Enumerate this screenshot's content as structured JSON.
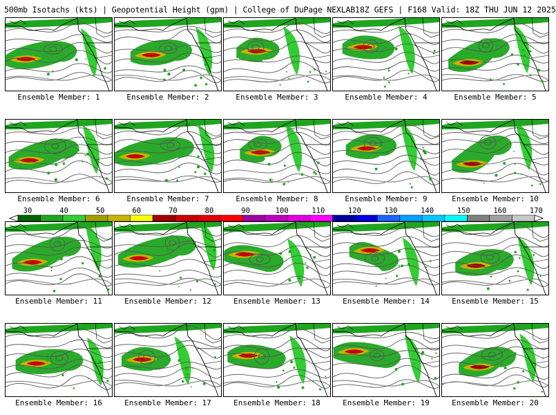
{
  "header": {
    "left": "500mb Isotachs (kts) | Geopotential Height (gpm) | College of DuPage NEXLAB",
    "right": "18Z GEFS | F168 Valid: 18Z THU JUN 12 2025"
  },
  "colorbar": {
    "labels": [
      "30",
      "40",
      "50",
      "60",
      "70",
      "80",
      "90",
      "100",
      "110",
      "120",
      "130",
      "140",
      "150",
      "160",
      "170"
    ],
    "colors": [
      "#006400",
      "#1fa51f",
      "#32cd32",
      "#a0a000",
      "#c8b400",
      "#ffff00",
      "#a00000",
      "#c80000",
      "#e00000",
      "#ff0000",
      "#a000a0",
      "#c000c0",
      "#e000e0",
      "#ff00ff",
      "#0000a0",
      "#0000e0",
      "#1e64ff",
      "#00a0ff",
      "#00c8ff",
      "#00ffff",
      "#808080",
      "#a0a0a0",
      "#c8c8c8"
    ]
  },
  "panels": [
    {
      "label": "Ensemble Member: 1"
    },
    {
      "label": "Ensemble Member: 2"
    },
    {
      "label": "Ensemble Member: 3"
    },
    {
      "label": "Ensemble Member: 4"
    },
    {
      "label": "Ensemble Member: 5"
    },
    {
      "label": "Ensemble Member: 6"
    },
    {
      "label": "Ensemble Member: 7"
    },
    {
      "label": "Ensemble Member: 8"
    },
    {
      "label": "Ensemble Member: 9"
    },
    {
      "label": "Ensemble Member: 10"
    },
    {
      "label": "Ensemble Member: 11"
    },
    {
      "label": "Ensemble Member: 12"
    },
    {
      "label": "Ensemble Member: 13"
    },
    {
      "label": "Ensemble Member: 14"
    },
    {
      "label": "Ensemble Member: 15"
    },
    {
      "label": "Ensemble Member: 16"
    },
    {
      "label": "Ensemble Member: 17"
    },
    {
      "label": "Ensemble Member: 18"
    },
    {
      "label": "Ensemble Member: 19"
    },
    {
      "label": "Ensemble Member: 20"
    }
  ]
}
